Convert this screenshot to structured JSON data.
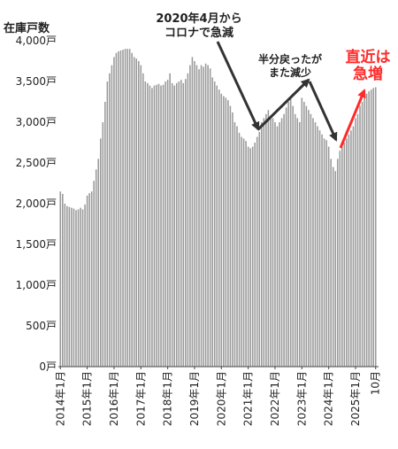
{
  "chart_data": {
    "type": "bar",
    "ylabel": "在庫戸数",
    "ylim": [
      0,
      4000
    ],
    "yticks": [
      {
        "value": 0,
        "label": "0戸"
      },
      {
        "value": 500,
        "label": "500戸"
      },
      {
        "value": 1000,
        "label": "1,000戸"
      },
      {
        "value": 1500,
        "label": "1,500戸"
      },
      {
        "value": 2000,
        "label": "2,000戸"
      },
      {
        "value": 2500,
        "label": "2,500戸"
      },
      {
        "value": 3000,
        "label": "3,000戸"
      },
      {
        "value": 3500,
        "label": "3,500戸"
      },
      {
        "value": 4000,
        "label": "4,000戸"
      }
    ],
    "xtick_labels": [
      "2014年1月",
      "2015年1月",
      "2016年1月",
      "2017年1月",
      "2018年1月",
      "2019年1月",
      "2020年1月",
      "2021年1月",
      "2022年1月",
      "2023年1月",
      "2024年1月",
      "2025年1月",
      "10月"
    ],
    "bar_color": "#9a9a9a",
    "grid": false,
    "categories": [
      "2014-01",
      "2014-02",
      "2014-03",
      "2014-04",
      "2014-05",
      "2014-06",
      "2014-07",
      "2014-08",
      "2014-09",
      "2014-10",
      "2014-11",
      "2014-12",
      "2015-01",
      "2015-02",
      "2015-03",
      "2015-04",
      "2015-05",
      "2015-06",
      "2015-07",
      "2015-08",
      "2015-09",
      "2015-10",
      "2015-11",
      "2015-12",
      "2016-01",
      "2016-02",
      "2016-03",
      "2016-04",
      "2016-05",
      "2016-06",
      "2016-07",
      "2016-08",
      "2016-09",
      "2016-10",
      "2016-11",
      "2016-12",
      "2017-01",
      "2017-02",
      "2017-03",
      "2017-04",
      "2017-05",
      "2017-06",
      "2017-07",
      "2017-08",
      "2017-09",
      "2017-10",
      "2017-11",
      "2017-12",
      "2018-01",
      "2018-02",
      "2018-03",
      "2018-04",
      "2018-05",
      "2018-06",
      "2018-07",
      "2018-08",
      "2018-09",
      "2018-10",
      "2018-11",
      "2018-12",
      "2019-01",
      "2019-02",
      "2019-03",
      "2019-04",
      "2019-05",
      "2019-06",
      "2019-07",
      "2019-08",
      "2019-09",
      "2019-10",
      "2019-11",
      "2019-12",
      "2020-01",
      "2020-02",
      "2020-03",
      "2020-04",
      "2020-05",
      "2020-06",
      "2020-07",
      "2020-08",
      "2020-09",
      "2020-10",
      "2020-11",
      "2020-12",
      "2021-01",
      "2021-02",
      "2021-03",
      "2021-04",
      "2021-05",
      "2021-06",
      "2021-07",
      "2021-08",
      "2021-09",
      "2021-10",
      "2021-11",
      "2021-12",
      "2022-01",
      "2022-02",
      "2022-03",
      "2022-04",
      "2022-05",
      "2022-06",
      "2022-07",
      "2022-08",
      "2022-09",
      "2022-10",
      "2022-11",
      "2022-12",
      "2023-01",
      "2023-02",
      "2023-03",
      "2023-04",
      "2023-05",
      "2023-06",
      "2023-07",
      "2023-08",
      "2023-09",
      "2023-10",
      "2023-11",
      "2023-12",
      "2024-01",
      "2024-02",
      "2024-03",
      "2024-04",
      "2024-05",
      "2024-06",
      "2024-07",
      "2024-08",
      "2024-09",
      "2024-10",
      "2024-11",
      "2024-12",
      "2025-01",
      "2025-02",
      "2025-03",
      "2025-04",
      "2025-05",
      "2025-06",
      "2025-07",
      "2025-08",
      "2025-09",
      "2025-10"
    ],
    "values": [
      2150,
      2120,
      2000,
      1970,
      1960,
      1950,
      1940,
      1920,
      1930,
      1950,
      1930,
      1990,
      2100,
      2130,
      2150,
      2280,
      2420,
      2550,
      2800,
      3000,
      3250,
      3500,
      3600,
      3700,
      3800,
      3850,
      3870,
      3880,
      3890,
      3900,
      3900,
      3900,
      3850,
      3800,
      3780,
      3750,
      3700,
      3600,
      3500,
      3480,
      3450,
      3420,
      3450,
      3460,
      3470,
      3450,
      3460,
      3500,
      3520,
      3600,
      3480,
      3450,
      3480,
      3500,
      3520,
      3480,
      3530,
      3600,
      3700,
      3800,
      3750,
      3700,
      3650,
      3700,
      3680,
      3720,
      3700,
      3660,
      3550,
      3500,
      3450,
      3400,
      3350,
      3320,
      3300,
      3270,
      3200,
      3120,
      3000,
      2950,
      2870,
      2820,
      2800,
      2770,
      2700,
      2680,
      2700,
      2750,
      2820,
      2880,
      3000,
      3050,
      3100,
      3150,
      3080,
      3050,
      3000,
      2950,
      3000,
      3050,
      3100,
      3180,
      3250,
      3300,
      3200,
      3100,
      3050,
      3000,
      3300,
      3250,
      3200,
      3150,
      3100,
      3050,
      3000,
      2950,
      2900,
      2850,
      2800,
      2780,
      2700,
      2550,
      2450,
      2400,
      2550,
      2650,
      2700,
      2750,
      2800,
      2850,
      2900,
      2950,
      3050,
      3100,
      3200,
      3250,
      3300,
      3350,
      3380,
      3400,
      3420,
      3430
    ]
  },
  "annotations": {
    "covid_line1": "2020年4月から",
    "covid_line2": "コロナで急減",
    "half_line1": "半分戻ったが",
    "half_line2": "また減少",
    "recent_line1": "直近は",
    "recent_line2": "急増"
  }
}
